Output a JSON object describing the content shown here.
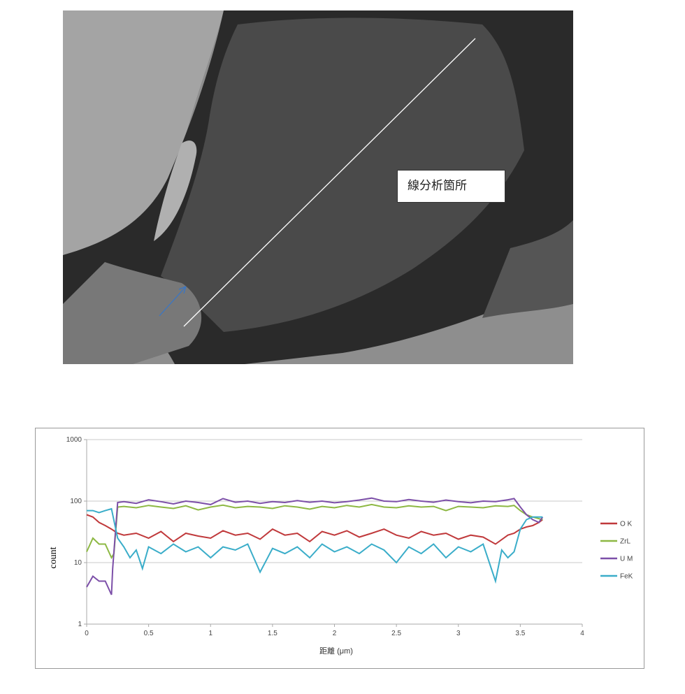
{
  "image": {
    "annotation_label": "線分析箇所"
  },
  "chart_data": {
    "type": "line",
    "xlabel": "距離 (μm)",
    "ylabel": "count",
    "xlim": [
      0,
      4
    ],
    "ylim": [
      1,
      1000
    ],
    "yscale": "log",
    "xticks": [
      "0",
      "0.5",
      "1",
      "1.5",
      "2",
      "2.5",
      "3",
      "3.5",
      "4"
    ],
    "yticks": [
      "1",
      "10",
      "100",
      "1000"
    ],
    "grid": "horizontal",
    "legend": "right",
    "series": [
      {
        "name": "O K",
        "color": "#c0393b",
        "x": [
          0,
          0.05,
          0.1,
          0.15,
          0.2,
          0.25,
          0.3,
          0.4,
          0.5,
          0.6,
          0.7,
          0.8,
          0.9,
          1.0,
          1.1,
          1.2,
          1.3,
          1.4,
          1.5,
          1.6,
          1.7,
          1.8,
          1.9,
          2.0,
          2.1,
          2.2,
          2.3,
          2.4,
          2.5,
          2.6,
          2.7,
          2.8,
          2.9,
          3.0,
          3.1,
          3.2,
          3.3,
          3.4,
          3.45,
          3.5,
          3.55,
          3.6,
          3.65,
          3.68
        ],
        "y": [
          60,
          55,
          45,
          40,
          35,
          30,
          28,
          30,
          25,
          32,
          22,
          30,
          27,
          25,
          33,
          28,
          30,
          24,
          35,
          28,
          30,
          22,
          32,
          28,
          33,
          26,
          30,
          35,
          28,
          25,
          32,
          28,
          30,
          24,
          28,
          26,
          20,
          28,
          30,
          35,
          38,
          40,
          45,
          50
        ]
      },
      {
        "name": "ZrL",
        "color": "#8db843",
        "x": [
          0,
          0.05,
          0.1,
          0.15,
          0.2,
          0.22,
          0.25,
          0.3,
          0.4,
          0.5,
          0.6,
          0.7,
          0.8,
          0.9,
          1.0,
          1.1,
          1.2,
          1.3,
          1.4,
          1.5,
          1.6,
          1.7,
          1.8,
          1.9,
          2.0,
          2.1,
          2.2,
          2.3,
          2.4,
          2.5,
          2.6,
          2.7,
          2.8,
          2.9,
          3.0,
          3.1,
          3.2,
          3.3,
          3.4,
          3.45,
          3.5,
          3.55,
          3.6,
          3.68
        ],
        "y": [
          15,
          25,
          20,
          20,
          12,
          14,
          80,
          82,
          78,
          85,
          80,
          76,
          84,
          72,
          80,
          86,
          78,
          82,
          80,
          76,
          84,
          80,
          74,
          82,
          78,
          85,
          80,
          88,
          80,
          78,
          84,
          80,
          82,
          70,
          82,
          80,
          78,
          84,
          82,
          85,
          70,
          60,
          55,
          50
        ]
      },
      {
        "name": "U M",
        "color": "#7c4fa8",
        "x": [
          0,
          0.05,
          0.1,
          0.15,
          0.2,
          0.21,
          0.25,
          0.3,
          0.4,
          0.5,
          0.6,
          0.7,
          0.8,
          0.9,
          1.0,
          1.1,
          1.2,
          1.3,
          1.4,
          1.5,
          1.6,
          1.7,
          1.8,
          1.9,
          2.0,
          2.1,
          2.2,
          2.3,
          2.4,
          2.5,
          2.6,
          2.7,
          2.8,
          2.9,
          3.0,
          3.1,
          3.2,
          3.3,
          3.4,
          3.45,
          3.5,
          3.55,
          3.6,
          3.65,
          3.68
        ],
        "y": [
          4,
          6,
          5,
          5,
          3,
          8,
          95,
          98,
          92,
          105,
          98,
          90,
          100,
          95,
          88,
          110,
          96,
          100,
          92,
          98,
          95,
          102,
          96,
          100,
          94,
          98,
          104,
          112,
          100,
          98,
          106,
          100,
          96,
          104,
          98,
          94,
          100,
          98,
          105,
          110,
          80,
          60,
          50,
          45,
          55
        ]
      },
      {
        "name": "FeK",
        "color": "#3aadc9",
        "x": [
          0,
          0.05,
          0.1,
          0.15,
          0.2,
          0.25,
          0.3,
          0.35,
          0.4,
          0.45,
          0.5,
          0.6,
          0.7,
          0.8,
          0.9,
          1.0,
          1.1,
          1.2,
          1.3,
          1.4,
          1.5,
          1.6,
          1.7,
          1.8,
          1.9,
          2.0,
          2.1,
          2.2,
          2.3,
          2.4,
          2.5,
          2.6,
          2.7,
          2.8,
          2.9,
          3.0,
          3.1,
          3.2,
          3.3,
          3.35,
          3.4,
          3.45,
          3.5,
          3.55,
          3.6,
          3.68
        ],
        "y": [
          70,
          70,
          65,
          70,
          75,
          25,
          18,
          12,
          16,
          8,
          18,
          14,
          20,
          15,
          18,
          12,
          18,
          16,
          20,
          7,
          17,
          14,
          18,
          12,
          20,
          15,
          18,
          14,
          20,
          16,
          10,
          18,
          14,
          20,
          12,
          18,
          15,
          20,
          5,
          16,
          12,
          15,
          35,
          50,
          55,
          55
        ]
      }
    ]
  }
}
